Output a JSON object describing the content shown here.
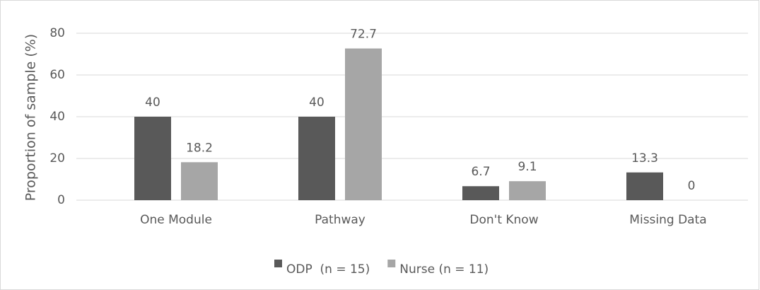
{
  "chart_data": {
    "type": "bar",
    "y_label": "Proportion of sample (%)",
    "categories": [
      "One Module",
      "Pathway",
      "Don't Know",
      "Missing Data"
    ],
    "series": [
      {
        "name": "ODP  (n = 15)",
        "color": "#595959",
        "values": [
          40,
          40,
          6.7,
          13.3
        ]
      },
      {
        "name": "Nurse (n = 11)",
        "color": "#a6a6a6",
        "values": [
          18.2,
          72.7,
          9.1,
          0
        ]
      }
    ],
    "ylim": [
      0,
      80
    ],
    "yticks": [
      0,
      20,
      40,
      60,
      80
    ],
    "grid": true,
    "legend": "bottom"
  }
}
